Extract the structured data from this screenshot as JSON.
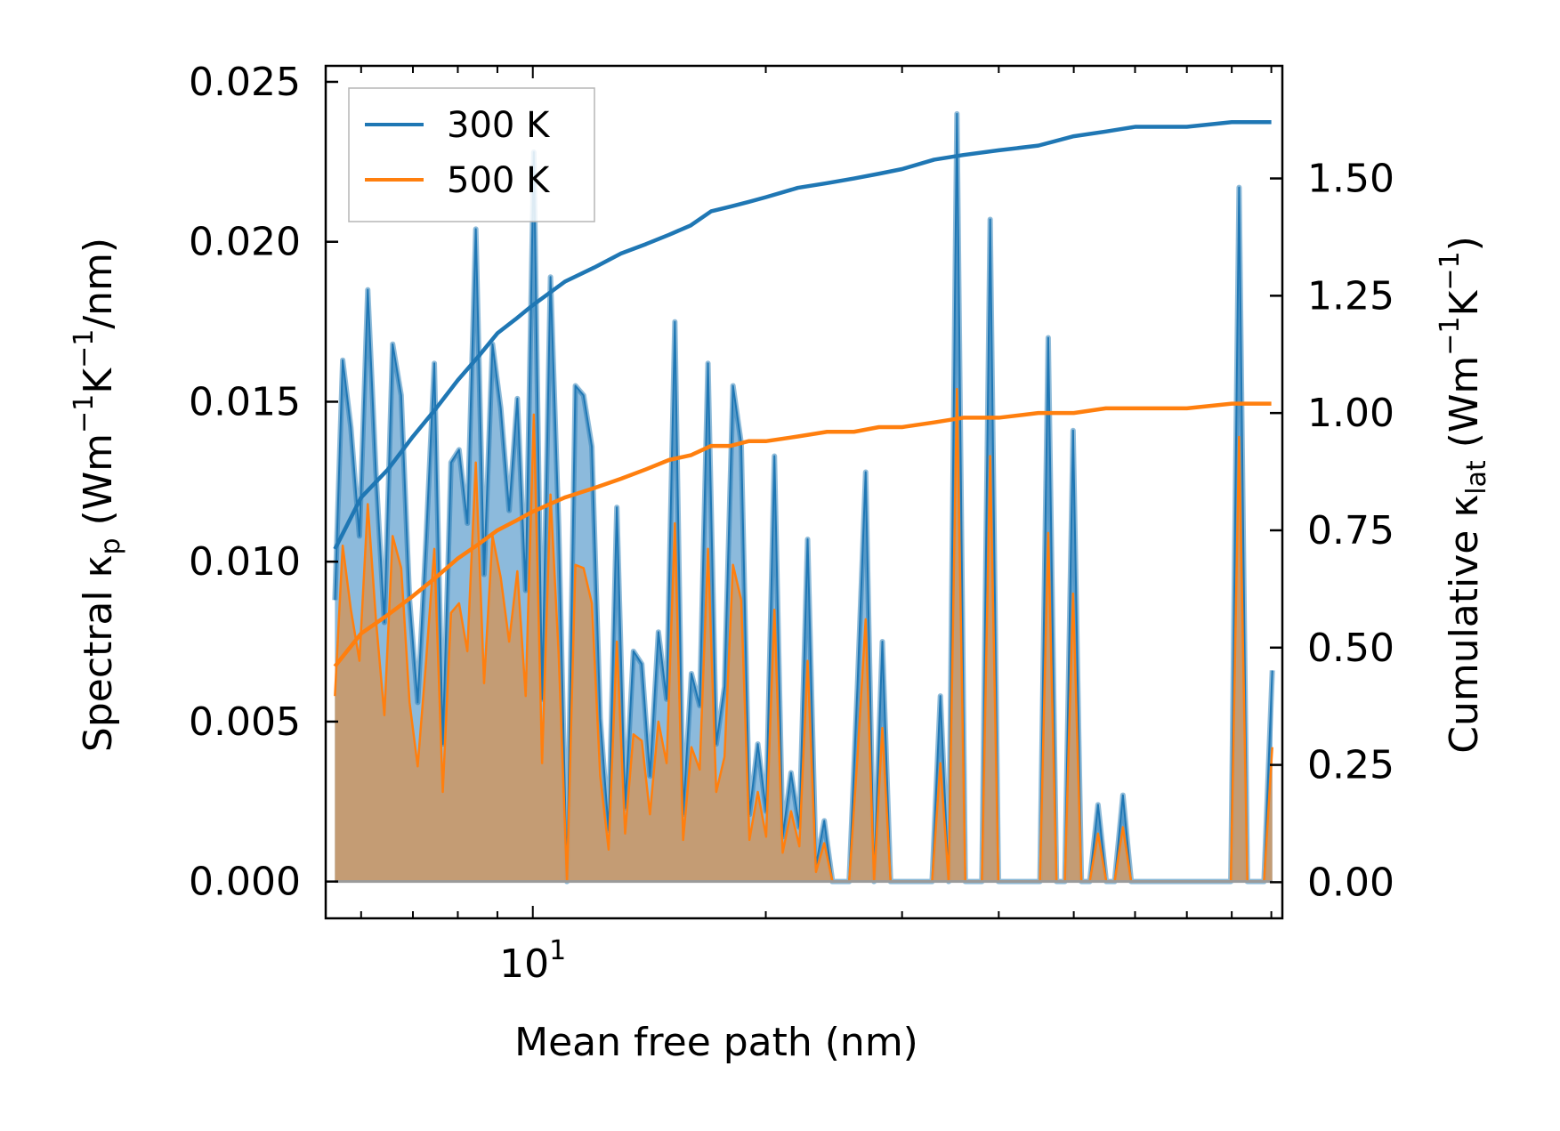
{
  "chart_data": {
    "type": "line",
    "xlabel": "Mean free path (nm)",
    "xscale": "log",
    "xlim": [
      5.4,
      93
    ],
    "x_ticks": [
      {
        "value": 10,
        "base": "10",
        "exponent": "1"
      }
    ],
    "y_left": {
      "label_parts": [
        "Spectral κ",
        "p",
        " (Wm",
        "−1",
        "K",
        "−1",
        "/nm)"
      ],
      "lim": [
        -0.00115,
        0.0255
      ],
      "ticks": [
        0.0,
        0.005,
        0.01,
        0.015,
        0.02,
        0.025
      ],
      "tick_labels": [
        "0.000",
        "0.005",
        "0.010",
        "0.015",
        "0.020",
        "0.025"
      ]
    },
    "y_right": {
      "label_parts": [
        "Cumulative κ",
        "lat",
        " (Wm",
        "−1",
        "K",
        "−1",
        ")"
      ],
      "lim": [
        -0.077,
        1.74
      ],
      "ticks": [
        0.0,
        0.25,
        0.5,
        0.75,
        1.0,
        1.25,
        1.5
      ],
      "tick_labels": [
        "0.00",
        "0.25",
        "0.50",
        "0.75",
        "1.00",
        "1.25",
        "1.50"
      ]
    },
    "legend": {
      "location": "upper-left",
      "entries": [
        "300 K",
        "500 K"
      ]
    },
    "colors": {
      "300 K": "#1f77b4",
      "500 K": "#ff7f0e",
      "fill_300": "#7fb3d8",
      "fill_500": "#c79a6e"
    },
    "spectral_mfp_nm": [
      5.55,
      5.68,
      5.82,
      5.97,
      6.12,
      6.27,
      6.43,
      6.59,
      6.76,
      6.93,
      7.1,
      7.28,
      7.46,
      7.65,
      7.84,
      8.03,
      8.23,
      8.44,
      8.65,
      8.87,
      9.09,
      9.32,
      9.55,
      9.79,
      10.03,
      10.28,
      10.54,
      10.8,
      11.07,
      11.35,
      11.63,
      11.92,
      12.22,
      12.53,
      12.84,
      13.16,
      13.49,
      13.83,
      14.17,
      14.53,
      14.89,
      15.26,
      15.64,
      16.03,
      16.43,
      16.84,
      17.26,
      17.69,
      18.14,
      18.59,
      19.05,
      19.53,
      20.02,
      20.52,
      21.03,
      21.56,
      22.1,
      22.65,
      23.22,
      23.8,
      24.39,
      25.0,
      25.63,
      26.27,
      26.92,
      27.6,
      28.29,
      28.99,
      29.72,
      30.46,
      31.22,
      32.0,
      32.8,
      33.62,
      34.46,
      35.32,
      36.21,
      37.11,
      38.04,
      38.99,
      39.96,
      40.96,
      41.98,
      43.03,
      44.11,
      45.21,
      46.34,
      47.5,
      48.69,
      49.9,
      51.15,
      52.43,
      53.74,
      55.08,
      56.46,
      57.87,
      59.32,
      60.8,
      62.32,
      63.88,
      65.48,
      67.11,
      68.79,
      70.51,
      72.27,
      74.08,
      75.93,
      77.83,
      79.78,
      81.77,
      83.81,
      85.91,
      88.06,
      90.26
    ],
    "spectral_300K": [
      0.0088,
      0.0163,
      0.0142,
      0.0108,
      0.0185,
      0.0128,
      0.0081,
      0.0168,
      0.0152,
      0.0088,
      0.0056,
      0.0107,
      0.0162,
      0.0043,
      0.0131,
      0.0135,
      0.0112,
      0.0204,
      0.0096,
      0.0168,
      0.0148,
      0.0116,
      0.0151,
      0.0091,
      0.0228,
      0.0057,
      0.0189,
      0.0111,
      0.0,
      0.0155,
      0.0152,
      0.0136,
      0.0051,
      0.0016,
      0.0117,
      0.0023,
      0.0072,
      0.0068,
      0.0033,
      0.0078,
      0.0057,
      0.0175,
      0.0021,
      0.0065,
      0.0055,
      0.0162,
      0.0043,
      0.0061,
      0.0155,
      0.0137,
      0.0021,
      0.0043,
      0.0022,
      0.0133,
      0.0014,
      0.0034,
      0.0017,
      0.0107,
      0.0005,
      0.0019,
      0.0,
      0.0,
      0.0,
      0.0061,
      0.0128,
      0.0,
      0.0075,
      0.0,
      0.0,
      0.0,
      0.0,
      0.0,
      0.0,
      0.0058,
      0.0,
      0.024,
      0.0,
      0.0,
      0.0,
      0.0207,
      0.0,
      0.0,
      0.0,
      0.0,
      0.0,
      0.0,
      0.017,
      0.0,
      0.0,
      0.0141,
      0.0,
      0.0,
      0.0024,
      0.0,
      0.0,
      0.0027,
      0.0,
      0.0,
      0.0,
      0.0,
      0.0,
      0.0,
      0.0,
      0.0,
      0.0,
      0.0,
      0.0,
      0.0,
      0.0,
      0.0217,
      0.0,
      0.0,
      0.0,
      0.0066
    ],
    "spectral_500K": [
      0.0058,
      0.0105,
      0.0085,
      0.0069,
      0.0118,
      0.0082,
      0.0052,
      0.0108,
      0.0098,
      0.0056,
      0.0036,
      0.0069,
      0.0104,
      0.0028,
      0.0084,
      0.0087,
      0.0072,
      0.0131,
      0.0062,
      0.0108,
      0.0095,
      0.0075,
      0.0097,
      0.0058,
      0.0146,
      0.0037,
      0.0121,
      0.0071,
      0.0,
      0.0099,
      0.0098,
      0.0087,
      0.0033,
      0.001,
      0.0075,
      0.0015,
      0.0046,
      0.0044,
      0.0021,
      0.005,
      0.0037,
      0.0112,
      0.0013,
      0.0042,
      0.0035,
      0.0104,
      0.0028,
      0.0039,
      0.0099,
      0.0088,
      0.0013,
      0.0028,
      0.0014,
      0.0085,
      0.0009,
      0.0022,
      0.0011,
      0.0069,
      0.0003,
      0.0012,
      0.0,
      0.0,
      0.0,
      0.0039,
      0.0082,
      0.0,
      0.0048,
      0.0,
      0.0,
      0.0,
      0.0,
      0.0,
      0.0,
      0.0037,
      0.0,
      0.0154,
      0.0,
      0.0,
      0.0,
      0.0133,
      0.0,
      0.0,
      0.0,
      0.0,
      0.0,
      0.0,
      0.0109,
      0.0,
      0.0,
      0.009,
      0.0,
      0.0,
      0.0015,
      0.0,
      0.0,
      0.0017,
      0.0,
      0.0,
      0.0,
      0.0,
      0.0,
      0.0,
      0.0,
      0.0,
      0.0,
      0.0,
      0.0,
      0.0,
      0.0,
      0.0139,
      0.0,
      0.0,
      0.0,
      0.0042
    ],
    "cumulative_mfp_nm": [
      5.55,
      6.0,
      6.5,
      7.0,
      7.5,
      8.0,
      8.5,
      9.0,
      9.5,
      10.0,
      11.0,
      12.0,
      13.0,
      14.0,
      15.0,
      16.0,
      17.0,
      18.0,
      19.0,
      20.0,
      22.0,
      24.0,
      26.0,
      28.0,
      30.0,
      33.0,
      36.0,
      40.0,
      45.0,
      50.0,
      55.0,
      60.0,
      70.0,
      80.0,
      90.0
    ],
    "cumulative_300K": [
      0.71,
      0.82,
      0.88,
      0.95,
      1.01,
      1.07,
      1.12,
      1.17,
      1.2,
      1.23,
      1.28,
      1.31,
      1.34,
      1.36,
      1.38,
      1.4,
      1.43,
      1.44,
      1.45,
      1.46,
      1.48,
      1.49,
      1.5,
      1.51,
      1.52,
      1.54,
      1.55,
      1.56,
      1.57,
      1.59,
      1.6,
      1.61,
      1.61,
      1.62,
      1.62
    ],
    "cumulative_500K": [
      0.46,
      0.53,
      0.57,
      0.61,
      0.65,
      0.69,
      0.72,
      0.75,
      0.77,
      0.79,
      0.82,
      0.84,
      0.86,
      0.88,
      0.9,
      0.91,
      0.93,
      0.93,
      0.94,
      0.94,
      0.95,
      0.96,
      0.96,
      0.97,
      0.97,
      0.98,
      0.99,
      0.99,
      1.0,
      1.0,
      1.01,
      1.01,
      1.01,
      1.02,
      1.02
    ]
  }
}
